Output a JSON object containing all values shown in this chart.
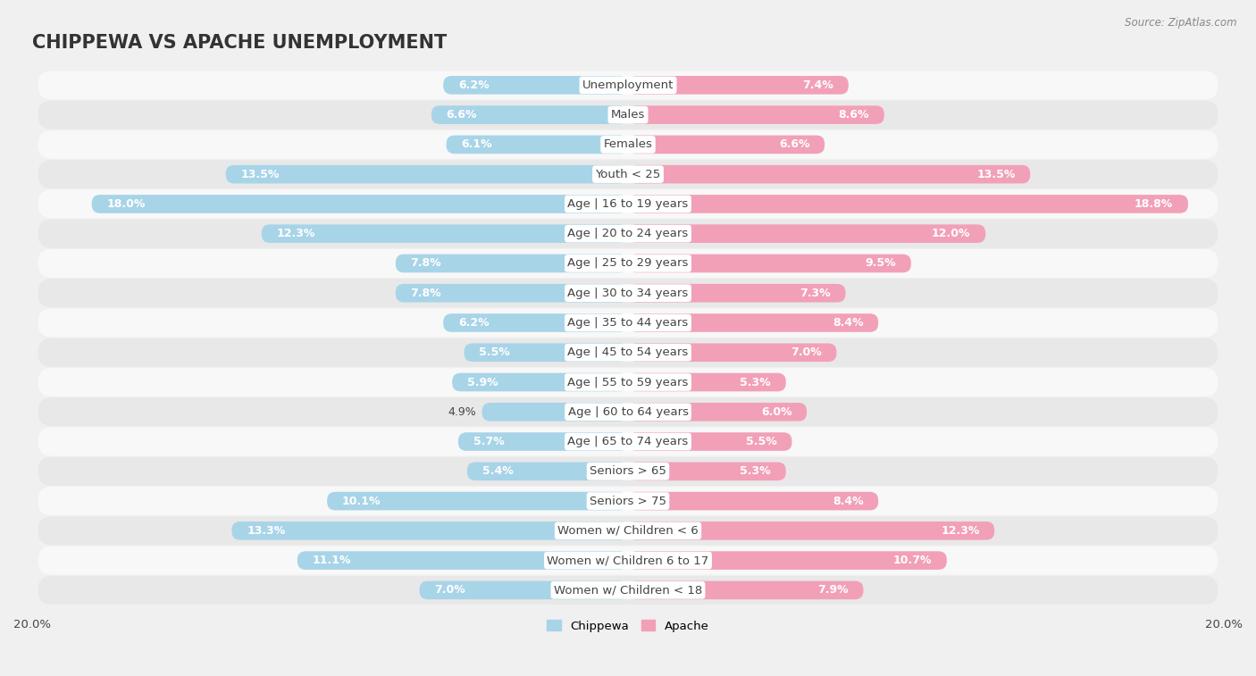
{
  "title": "CHIPPEWA VS APACHE UNEMPLOYMENT",
  "source": "Source: ZipAtlas.com",
  "categories": [
    "Unemployment",
    "Males",
    "Females",
    "Youth < 25",
    "Age | 16 to 19 years",
    "Age | 20 to 24 years",
    "Age | 25 to 29 years",
    "Age | 30 to 34 years",
    "Age | 35 to 44 years",
    "Age | 45 to 54 years",
    "Age | 55 to 59 years",
    "Age | 60 to 64 years",
    "Age | 65 to 74 years",
    "Seniors > 65",
    "Seniors > 75",
    "Women w/ Children < 6",
    "Women w/ Children 6 to 17",
    "Women w/ Children < 18"
  ],
  "chippewa": [
    6.2,
    6.6,
    6.1,
    13.5,
    18.0,
    12.3,
    7.8,
    7.8,
    6.2,
    5.5,
    5.9,
    4.9,
    5.7,
    5.4,
    10.1,
    13.3,
    11.1,
    7.0
  ],
  "apache": [
    7.4,
    8.6,
    6.6,
    13.5,
    18.8,
    12.0,
    9.5,
    7.3,
    8.4,
    7.0,
    5.3,
    6.0,
    5.5,
    5.3,
    8.4,
    12.3,
    10.7,
    7.9
  ],
  "chippewa_color": "#a8d4e8",
  "apache_color": "#f2a0b8",
  "bar_height": 0.62,
  "max_val": 20.0,
  "background_color": "#f0f0f0",
  "row_bg_light": "#f8f8f8",
  "row_bg_dark": "#e8e8e8",
  "title_fontsize": 15,
  "label_fontsize": 9.5,
  "value_fontsize": 9,
  "inside_threshold": 5.0,
  "legend_label_chippewa": "Chippewa",
  "legend_label_apache": "Apache",
  "text_dark": "#444444",
  "text_white": "#ffffff"
}
